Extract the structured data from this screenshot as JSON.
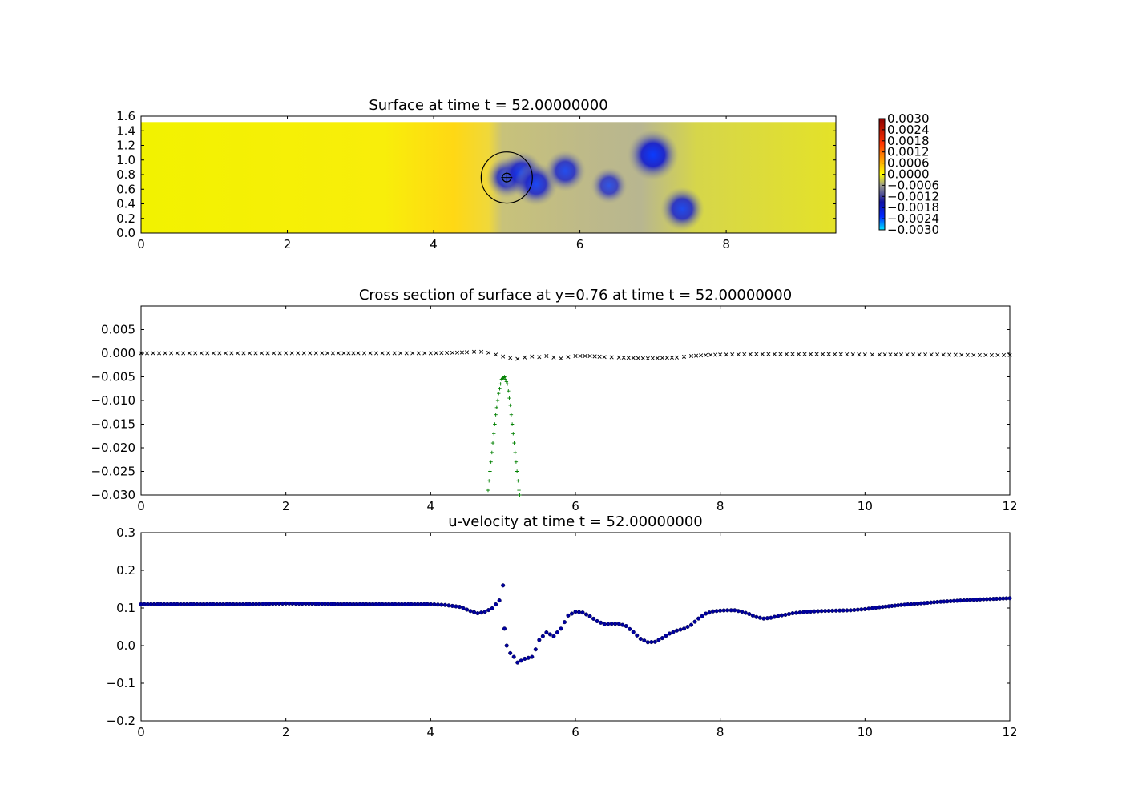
{
  "chart_data": [
    {
      "type": "heatmap",
      "title": "Surface at time t =    52.00000000",
      "xlabel": "",
      "ylabel": "",
      "xlim": [
        0,
        9.5
      ],
      "ylim": [
        0,
        1.6
      ],
      "xticks": [
        "0",
        "2",
        "4",
        "6",
        "8"
      ],
      "yticks": [
        "0.0",
        "0.2",
        "0.4",
        "0.6",
        "0.8",
        "1.0",
        "1.2",
        "1.4",
        "1.6"
      ],
      "colorbar": {
        "range": [
          -0.003,
          0.003
        ],
        "ticks": [
          "0.0030",
          "0.0024",
          "0.0018",
          "0.0012",
          "0.0006",
          "0.0000",
          "−0.0006",
          "−0.0012",
          "−0.0018",
          "−0.0024",
          "−0.0030"
        ],
        "colors": [
          "#00e5ff",
          "#0028ff",
          "#1010a0",
          "#9a9a8c",
          "#ffff00",
          "#ffa500",
          "#ff3000",
          "#8b0000"
        ]
      },
      "features": {
        "depressions": [
          {
            "x": 5.0,
            "y": 0.76,
            "value": -0.0018
          },
          {
            "x": 5.2,
            "y": 0.82,
            "value": -0.002
          },
          {
            "x": 5.4,
            "y": 0.67,
            "value": -0.002
          },
          {
            "x": 5.8,
            "y": 0.85,
            "value": -0.0018
          },
          {
            "x": 6.4,
            "y": 0.65,
            "value": -0.0014
          },
          {
            "x": 7.0,
            "y": 1.07,
            "value": -0.0026
          },
          {
            "x": 7.4,
            "y": 0.33,
            "value": -0.002
          }
        ],
        "overlay_circles": [
          {
            "x": 5.0,
            "y": 0.76,
            "r": 0.35
          },
          {
            "x": 5.0,
            "y": 0.76,
            "r": 0.06
          }
        ]
      }
    },
    {
      "type": "scatter",
      "title": "Cross section of surface at y=0.76 at time t =    52.00000000",
      "xlabel": "",
      "ylabel": "",
      "xlim": [
        0,
        12
      ],
      "ylim": [
        -0.03,
        0.01
      ],
      "xticks": [
        "0",
        "2",
        "4",
        "6",
        "8",
        "10",
        "12"
      ],
      "yticks": [
        "0.005",
        "0.000",
        "−0.005",
        "−0.010",
        "−0.015",
        "−0.020",
        "−0.025",
        "−0.030"
      ],
      "series": [
        {
          "color": "#000000",
          "marker": "x",
          "points": [
            [
              0.0,
              0.0
            ],
            [
              0.5,
              0.0
            ],
            [
              1.0,
              0.0
            ],
            [
              1.5,
              0.0
            ],
            [
              2.0,
              0.0
            ],
            [
              2.5,
              0.0
            ],
            [
              2.8,
              0.0
            ],
            [
              3.0,
              0.0
            ],
            [
              3.5,
              0.0
            ],
            [
              4.0,
              0.0
            ],
            [
              4.3,
              0.0001
            ],
            [
              4.5,
              0.0002
            ],
            [
              4.6,
              0.0003
            ],
            [
              4.7,
              0.0003
            ],
            [
              4.8,
              0.0001
            ],
            [
              4.9,
              -0.0003
            ],
            [
              5.0,
              -0.0007
            ],
            [
              5.1,
              -0.001
            ],
            [
              5.2,
              -0.0012
            ],
            [
              5.3,
              -0.0009
            ],
            [
              5.4,
              -0.0007
            ],
            [
              5.5,
              -0.0008
            ],
            [
              5.6,
              -0.0006
            ],
            [
              5.7,
              -0.0009
            ],
            [
              5.8,
              -0.0011
            ],
            [
              5.9,
              -0.0008
            ],
            [
              6.0,
              -0.0006
            ],
            [
              6.2,
              -0.0006
            ],
            [
              6.4,
              -0.0008
            ],
            [
              6.6,
              -0.0009
            ],
            [
              6.8,
              -0.001
            ],
            [
              7.0,
              -0.0011
            ],
            [
              7.2,
              -0.001
            ],
            [
              7.4,
              -0.0009
            ],
            [
              7.6,
              -0.0006
            ],
            [
              7.8,
              -0.0004
            ],
            [
              8.0,
              -0.0003
            ],
            [
              8.5,
              -0.0002
            ],
            [
              9.0,
              -0.0002
            ],
            [
              9.5,
              -0.0002
            ],
            [
              10.0,
              -0.0003
            ],
            [
              10.2,
              -0.0003
            ],
            [
              10.5,
              -0.0003
            ],
            [
              11.0,
              -0.0003
            ],
            [
              11.5,
              -0.0004
            ],
            [
              12.0,
              -0.0004
            ]
          ]
        },
        {
          "color": "#008000",
          "marker": "+",
          "points": [
            [
              4.78,
              -0.031
            ],
            [
              4.82,
              -0.025
            ],
            [
              4.86,
              -0.019
            ],
            [
              4.9,
              -0.013
            ],
            [
              4.94,
              -0.0085
            ],
            [
              4.98,
              -0.0055
            ],
            [
              5.02,
              -0.005
            ],
            [
              5.06,
              -0.0065
            ],
            [
              5.1,
              -0.011
            ],
            [
              5.14,
              -0.017
            ],
            [
              5.18,
              -0.023
            ],
            [
              5.22,
              -0.029
            ],
            [
              5.24,
              -0.031
            ]
          ]
        }
      ]
    },
    {
      "type": "scatter",
      "title": "u-velocity at time t =    52.00000000",
      "xlabel": "",
      "ylabel": "",
      "xlim": [
        0,
        12
      ],
      "ylim": [
        -0.2,
        0.3
      ],
      "xticks": [
        "0",
        "2",
        "4",
        "6",
        "8",
        "10",
        "12"
      ],
      "yticks": [
        "0.3",
        "0.2",
        "0.1",
        "0.0",
        "−0.1",
        "−0.2"
      ],
      "series": [
        {
          "color": "#0000a0",
          "marker": "o",
          "points": [
            [
              0.0,
              0.11
            ],
            [
              0.5,
              0.11
            ],
            [
              1.0,
              0.11
            ],
            [
              1.5,
              0.11
            ],
            [
              2.0,
              0.112
            ],
            [
              2.5,
              0.111
            ],
            [
              2.8,
              0.11
            ],
            [
              3.2,
              0.11
            ],
            [
              3.6,
              0.11
            ],
            [
              4.0,
              0.11
            ],
            [
              4.2,
              0.108
            ],
            [
              4.4,
              0.103
            ],
            [
              4.55,
              0.092
            ],
            [
              4.65,
              0.086
            ],
            [
              4.75,
              0.09
            ],
            [
              4.85,
              0.099
            ],
            [
              4.95,
              0.12
            ],
            [
              5.0,
              0.16
            ],
            [
              5.02,
              0.045
            ],
            [
              5.05,
              0.0
            ],
            [
              5.1,
              -0.02
            ],
            [
              5.15,
              -0.03
            ],
            [
              5.2,
              -0.045
            ],
            [
              5.3,
              -0.035
            ],
            [
              5.4,
              -0.03
            ],
            [
              5.45,
              -0.01
            ],
            [
              5.5,
              0.015
            ],
            [
              5.6,
              0.035
            ],
            [
              5.7,
              0.025
            ],
            [
              5.8,
              0.045
            ],
            [
              5.9,
              0.08
            ],
            [
              6.0,
              0.09
            ],
            [
              6.1,
              0.088
            ],
            [
              6.2,
              0.078
            ],
            [
              6.3,
              0.065
            ],
            [
              6.4,
              0.057
            ],
            [
              6.5,
              0.058
            ],
            [
              6.6,
              0.058
            ],
            [
              6.7,
              0.052
            ],
            [
              6.8,
              0.036
            ],
            [
              6.9,
              0.018
            ],
            [
              7.0,
              0.009
            ],
            [
              7.1,
              0.01
            ],
            [
              7.2,
              0.02
            ],
            [
              7.3,
              0.032
            ],
            [
              7.4,
              0.04
            ],
            [
              7.5,
              0.045
            ],
            [
              7.6,
              0.055
            ],
            [
              7.7,
              0.072
            ],
            [
              7.8,
              0.085
            ],
            [
              7.9,
              0.091
            ],
            [
              8.0,
              0.093
            ],
            [
              8.1,
              0.094
            ],
            [
              8.2,
              0.094
            ],
            [
              8.3,
              0.09
            ],
            [
              8.4,
              0.084
            ],
            [
              8.5,
              0.076
            ],
            [
              8.6,
              0.072
            ],
            [
              8.7,
              0.074
            ],
            [
              8.8,
              0.079
            ],
            [
              8.9,
              0.082
            ],
            [
              9.0,
              0.086
            ],
            [
              9.2,
              0.09
            ],
            [
              9.4,
              0.092
            ],
            [
              9.6,
              0.093
            ],
            [
              9.8,
              0.094
            ],
            [
              10.0,
              0.097
            ],
            [
              10.2,
              0.102
            ],
            [
              10.5,
              0.108
            ],
            [
              11.0,
              0.116
            ],
            [
              11.5,
              0.122
            ],
            [
              12.0,
              0.126
            ]
          ]
        }
      ]
    }
  ]
}
